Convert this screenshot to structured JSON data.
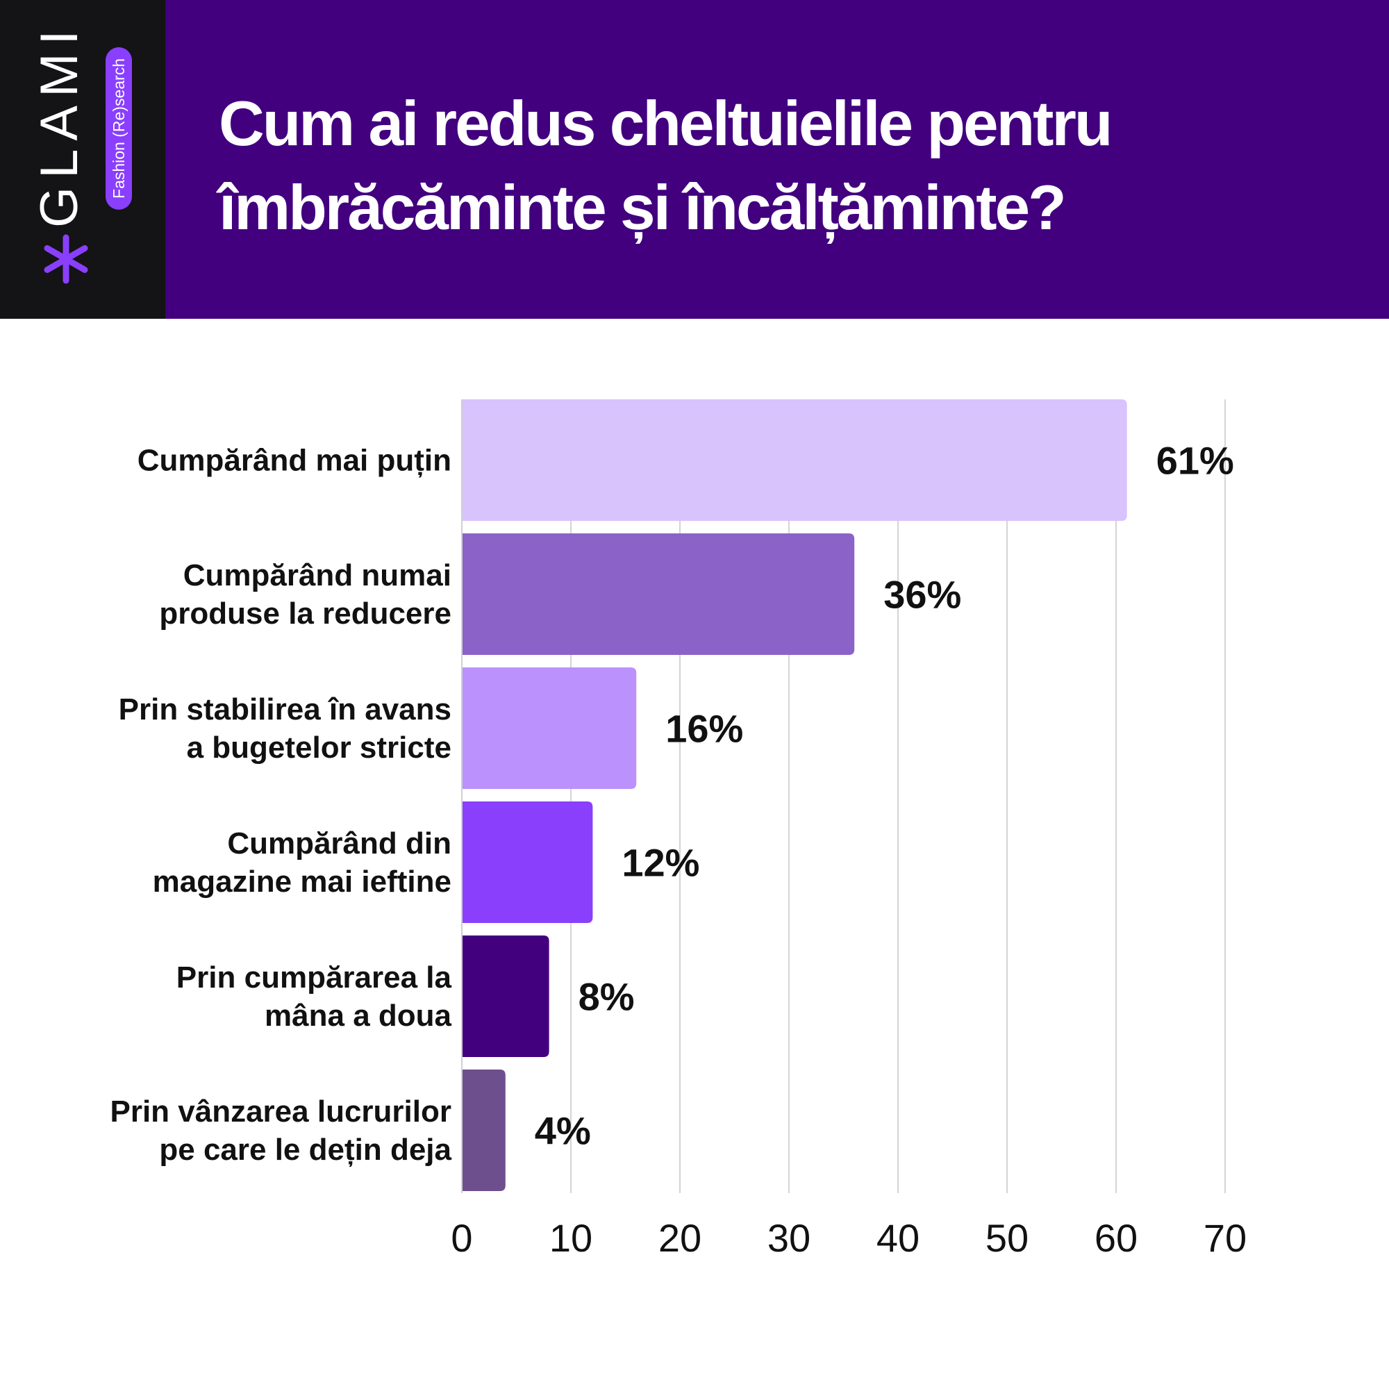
{
  "brand": {
    "name": "GLAMI",
    "tagline": "Fashion (Re)search",
    "accent_color": "#8a3ffc",
    "icon": "asterisk-icon"
  },
  "header": {
    "title": "Cum ai redus cheltuielile pentru îmbrăcăminte și încălțăminte?"
  },
  "chart_data": {
    "type": "bar",
    "orientation": "horizontal",
    "title": "Cum ai redus cheltuielile pentru îmbrăcăminte și încălțăminte?",
    "categories": [
      [
        "Cumpărând mai puțin"
      ],
      [
        "Cumpărând numai",
        "produse la reducere"
      ],
      [
        "Prin stabilirea în avans",
        "a bugetelor stricte"
      ],
      [
        "Cumpărând din",
        "magazine mai ieftine"
      ],
      [
        "Prin cumpărarea la",
        "mâna a doua"
      ],
      [
        "Prin vânzarea lucrurilor",
        "pe care le dețin deja"
      ]
    ],
    "values": [
      61,
      36,
      16,
      12,
      8,
      4
    ],
    "value_labels": [
      "61%",
      "36%",
      "16%",
      "12%",
      "8%",
      "4%"
    ],
    "bar_colors": [
      "#d8c3fd",
      "#8b62c8",
      "#bb91fd",
      "#8a3ffc",
      "#42007f",
      "#6e4f8d"
    ],
    "xlim": [
      0,
      70
    ],
    "xticks": [
      "0",
      "10",
      "20",
      "30",
      "40",
      "50",
      "60",
      "70"
    ],
    "grid": true,
    "xlabel": "",
    "ylabel": ""
  }
}
